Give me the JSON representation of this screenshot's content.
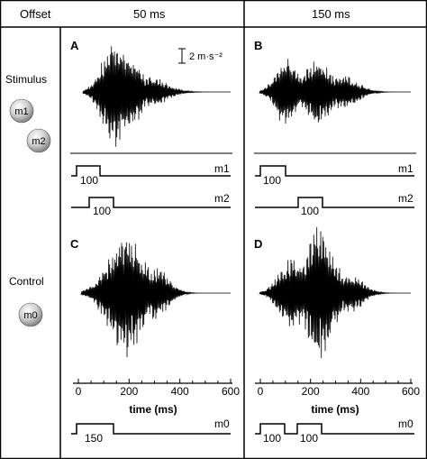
{
  "header": {
    "offset_label": "Offset",
    "col1": "50 ms",
    "col2": "150 ms"
  },
  "rows": {
    "stimulus_label": "Stimulus",
    "control_label": "Control"
  },
  "spheres": [
    "m1",
    "m2",
    "m0"
  ],
  "panels": [
    "A",
    "B",
    "C",
    "D"
  ],
  "scale_bar": "2 m·s⁻²",
  "axis": {
    "xlabel": "time (ms)",
    "ticks": [
      "0",
      "200",
      "400",
      "600"
    ]
  },
  "timelines": {
    "m1": "m1",
    "m2": "m2",
    "m0": "m0",
    "a_m1_dur": "100",
    "a_m2_dur": "100",
    "b_m1_dur": "100",
    "b_m2_dur": "100",
    "c_m0_dur": "150",
    "d_m0_dur1": "100",
    "d_m0_dur2": "100"
  }
}
